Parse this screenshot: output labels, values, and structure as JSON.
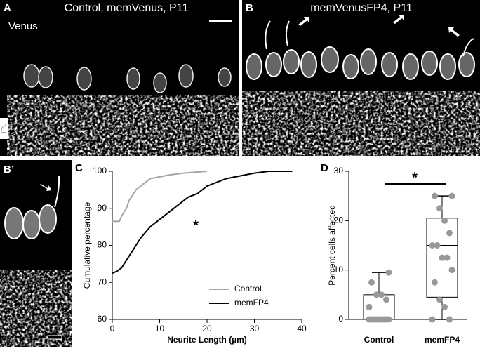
{
  "images": [
    {
      "letter": "A",
      "title": "Control, memVenus, P11",
      "label": "Venus",
      "layer": "IPL"
    },
    {
      "letter": "B",
      "title": "memVenusFP4, P11"
    },
    {
      "letter": "B’"
    }
  ],
  "chart_data": [
    {
      "type": "line",
      "letter": "C",
      "xlabel": "Neurite Length (µm)",
      "ylabel": "Cumulative percentage",
      "xlim": [
        0,
        40
      ],
      "xticks": [
        0,
        10,
        20,
        30,
        40
      ],
      "ylim": [
        60,
        100
      ],
      "yticks": [
        60,
        70,
        80,
        90,
        100
      ],
      "annotation": "*",
      "legend": "lower right",
      "series": [
        {
          "name": "Control",
          "color": "#a6a6a6",
          "x": [
            0,
            1.5,
            2,
            3,
            3.5,
            4,
            5,
            6,
            7,
            8,
            10,
            12,
            15,
            20
          ],
          "values": [
            86.5,
            86.5,
            88,
            90,
            92,
            93,
            95,
            96,
            97,
            98,
            98.5,
            99,
            99.5,
            100
          ]
        },
        {
          "name": "memFP4",
          "color": "#000000",
          "x": [
            0,
            1,
            2,
            3,
            4,
            5,
            6,
            7,
            8,
            10,
            12,
            14,
            16,
            18,
            20,
            22,
            24,
            26,
            28,
            30,
            33,
            38
          ],
          "values": [
            72.5,
            73,
            74,
            76,
            78,
            80,
            82,
            83.5,
            85,
            87,
            89,
            91,
            93,
            94,
            96,
            97,
            98,
            98.5,
            99,
            99.5,
            100,
            100
          ]
        }
      ]
    },
    {
      "type": "box",
      "letter": "D",
      "ylabel": "Percent cells affected",
      "categories": [
        "Control",
        "memFP4"
      ],
      "ylim": [
        0,
        30
      ],
      "yticks": [
        0,
        10,
        20,
        30
      ],
      "annotation": "*",
      "point_color": "#999999",
      "boxes": [
        {
          "min": 0,
          "q1": 0,
          "median": 0,
          "q3": 5,
          "max": 9.5
        },
        {
          "min": 0,
          "q1": 4.5,
          "median": 15,
          "q3": 20.5,
          "max": 25
        }
      ],
      "points": [
        [
          0,
          0,
          0,
          0,
          0,
          0,
          0,
          0,
          0,
          2.5,
          4,
          5,
          5,
          7.5,
          9.5
        ],
        [
          0,
          0,
          2.5,
          4,
          7.5,
          10,
          12.5,
          12.5,
          15,
          15,
          17.5,
          20,
          22.5,
          25,
          25
        ]
      ]
    }
  ]
}
